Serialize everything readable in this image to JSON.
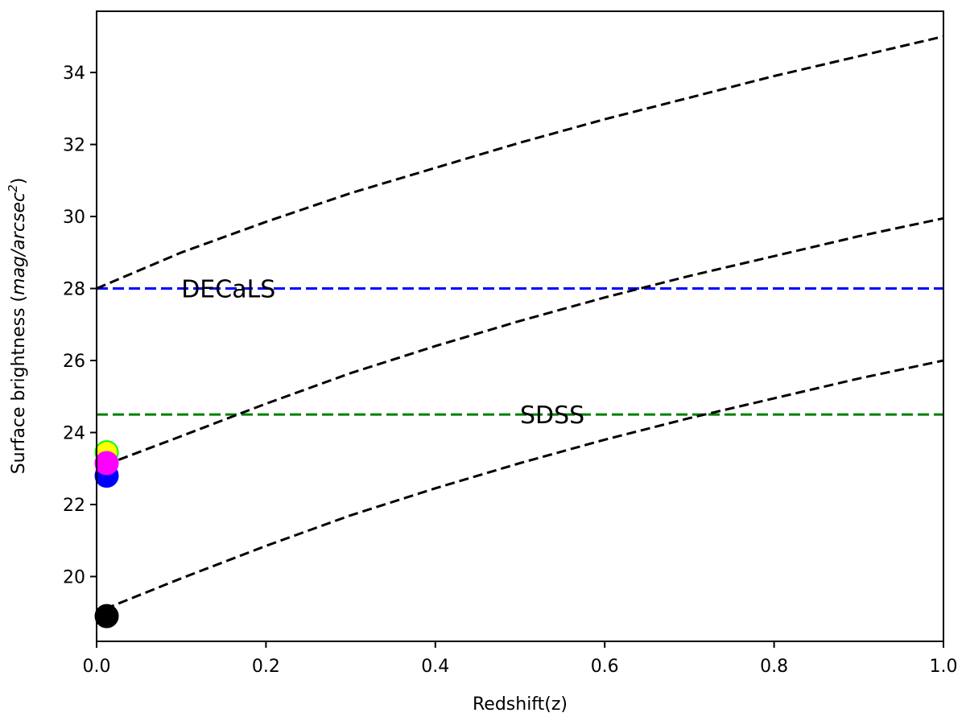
{
  "chart_data": {
    "type": "line",
    "title": "",
    "xlabel": "Redshift(z)",
    "ylabel_prefix": "Surface brightness (",
    "ylabel_math": "mag/arcsec",
    "ylabel_sup": "2",
    "ylabel_suffix": ")",
    "xlim": [
      0.0,
      1.0
    ],
    "ylim": [
      18.2,
      35.7
    ],
    "xticks": [
      "0.0",
      "0.2",
      "0.4",
      "0.6",
      "0.8",
      "1.0"
    ],
    "yticks": [
      "20",
      "22",
      "24",
      "26",
      "28",
      "30",
      "32",
      "34"
    ],
    "grid": false,
    "series": [
      {
        "color": "#000000",
        "style": "dashed",
        "x": [
          0.0,
          0.1,
          0.2,
          0.3,
          0.4,
          0.5,
          0.6,
          0.7,
          0.8,
          0.9,
          1.0
        ],
        "y": [
          28.0,
          29.0,
          29.85,
          30.65,
          31.35,
          32.05,
          32.7,
          33.3,
          33.9,
          34.45,
          35.0
        ]
      },
      {
        "color": "#000000",
        "style": "dashed",
        "x": [
          0.01,
          0.1,
          0.2,
          0.3,
          0.4,
          0.5,
          0.6,
          0.7,
          0.8,
          0.9,
          1.0
        ],
        "y": [
          23.1,
          23.9,
          24.8,
          25.65,
          26.4,
          27.1,
          27.75,
          28.35,
          28.9,
          29.45,
          29.95
        ]
      },
      {
        "color": "#000000",
        "style": "dashed",
        "x": [
          0.01,
          0.1,
          0.2,
          0.3,
          0.4,
          0.5,
          0.6,
          0.7,
          0.8,
          0.9,
          1.0
        ],
        "y": [
          19.1,
          19.95,
          20.85,
          21.7,
          22.45,
          23.15,
          23.8,
          24.4,
          24.95,
          25.5,
          26.0
        ]
      }
    ],
    "hlines": [
      {
        "y": 28.0,
        "color": "#0000ff",
        "style": "dashed",
        "label": "DECaLS",
        "label_x": 0.1
      },
      {
        "y": 24.5,
        "color": "#008000",
        "style": "dashed",
        "label": "SDSS",
        "label_x": 0.5
      }
    ],
    "points": [
      {
        "x": 0.01,
        "y": 23.45,
        "color": "#ffff00",
        "edge": "#00ff00"
      },
      {
        "x": 0.01,
        "y": 22.8,
        "color": "#0000ff",
        "edge": "#0000ff"
      },
      {
        "x": 0.01,
        "y": 23.15,
        "color": "#ff00ff",
        "edge": "#ff00ff"
      },
      {
        "x": 0.01,
        "y": 18.9,
        "color": "#000000",
        "edge": "#000000"
      }
    ]
  }
}
